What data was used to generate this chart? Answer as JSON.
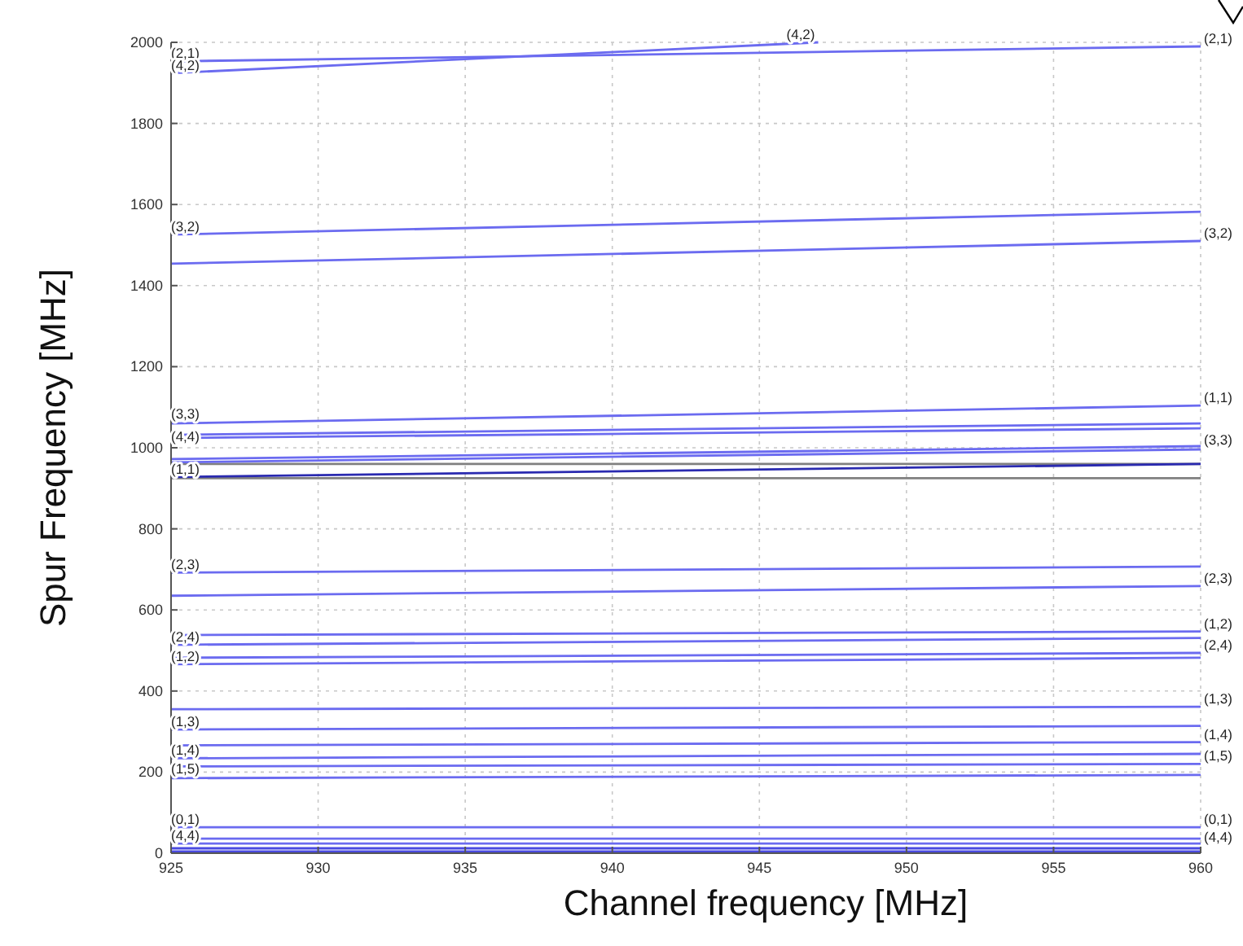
{
  "chart_data": {
    "type": "line",
    "xlabel": "Channel frequency [MHz]",
    "ylabel": "Spur Frequency [MHz]",
    "xlim": [
      925,
      960
    ],
    "ylim": [
      0,
      2000
    ],
    "xticks": [
      925,
      930,
      935,
      940,
      945,
      950,
      955,
      960
    ],
    "yticks": [
      0,
      200,
      400,
      600,
      800,
      1000,
      1200,
      1400,
      1600,
      1800,
      2000
    ],
    "grid": true,
    "marker": "none",
    "line_style": "solid",
    "ref_lines": [
      {
        "axis": "y",
        "value": 925,
        "color": "#808080"
      },
      {
        "axis": "y",
        "value": 960,
        "color": "#808080"
      }
    ],
    "series": [
      {
        "color": "#6b6bf0",
        "x": [
          925,
          960
        ],
        "values": [
          1953,
          1990
        ]
      },
      {
        "color": "#6b6bf0",
        "x": [
          925,
          947
        ],
        "values": [
          1924,
          2000
        ]
      },
      {
        "color": "#6b6bf0",
        "x": [
          925,
          960
        ],
        "values": [
          1526,
          1582
        ]
      },
      {
        "color": "#6b6bf0",
        "x": [
          925,
          960
        ],
        "values": [
          1454,
          1510
        ]
      },
      {
        "color": "#6b6bf0",
        "x": [
          925,
          960
        ],
        "values": [
          1060,
          1104
        ]
      },
      {
        "color": "#6b6bf0",
        "x": [
          925,
          960
        ],
        "values": [
          1032,
          1060
        ]
      },
      {
        "color": "#6b6bf0",
        "x": [
          925,
          960
        ],
        "values": [
          1024,
          1048
        ]
      },
      {
        "color": "#6b6bf0",
        "x": [
          925,
          960
        ],
        "values": [
          972,
          1004
        ]
      },
      {
        "color": "#6b6bf0",
        "x": [
          925,
          960
        ],
        "values": [
          964,
          996
        ]
      },
      {
        "color": "#2a2ab0",
        "x": [
          925,
          960
        ],
        "values": [
          928,
          960
        ]
      },
      {
        "color": "#6b6bf0",
        "x": [
          925,
          960
        ],
        "values": [
          692,
          707
        ]
      },
      {
        "color": "#6b6bf0",
        "x": [
          925,
          960
        ],
        "values": [
          635,
          659
        ]
      },
      {
        "color": "#6b6bf0",
        "x": [
          925,
          960
        ],
        "values": [
          538,
          547
        ]
      },
      {
        "color": "#6b6bf0",
        "x": [
          925,
          960
        ],
        "values": [
          514,
          531
        ]
      },
      {
        "color": "#6b6bf0",
        "x": [
          925,
          960
        ],
        "values": [
          482,
          494
        ]
      },
      {
        "color": "#6b6bf0",
        "x": [
          925,
          960
        ],
        "values": [
          466,
          482
        ]
      },
      {
        "color": "#6b6bf0",
        "x": [
          925,
          960
        ],
        "values": [
          355,
          361
        ]
      },
      {
        "color": "#6b6bf0",
        "x": [
          925,
          960
        ],
        "values": [
          305,
          314
        ]
      },
      {
        "color": "#6b6bf0",
        "x": [
          925,
          960
        ],
        "values": [
          266,
          274
        ]
      },
      {
        "color": "#6b6bf0",
        "x": [
          925,
          960
        ],
        "values": [
          234,
          245
        ]
      },
      {
        "color": "#6b6bf0",
        "x": [
          925,
          960
        ],
        "values": [
          214,
          220
        ]
      },
      {
        "color": "#6b6bf0",
        "x": [
          925,
          960
        ],
        "values": [
          185,
          193
        ]
      },
      {
        "color": "#6b6bf0",
        "x": [
          925,
          960
        ],
        "values": [
          64,
          64
        ]
      },
      {
        "color": "#6b6bf0",
        "x": [
          925,
          960
        ],
        "values": [
          36,
          36
        ]
      },
      {
        "color": "#6b6bf0",
        "x": [
          925,
          960
        ],
        "values": [
          24,
          24
        ]
      },
      {
        "color": "#4a4ae0",
        "x": [
          925,
          960
        ],
        "values": [
          12,
          12
        ]
      },
      {
        "color": "#4a4ae0",
        "x": [
          925,
          960
        ],
        "values": [
          4,
          4
        ]
      }
    ],
    "annotations": [
      {
        "text": "(2,1)",
        "x": 925,
        "y": 1953
      },
      {
        "text": "(4,2)",
        "x": 925,
        "y": 1924
      },
      {
        "text": "(3,2)",
        "x": 925,
        "y": 1526
      },
      {
        "text": "(3,3)",
        "x": 925,
        "y": 1064
      },
      {
        "text": "(4,4)",
        "x": 925,
        "y": 1008
      },
      {
        "text": "(1,1)",
        "x": 925,
        "y": 928
      },
      {
        "text": "(2,3)",
        "x": 925,
        "y": 692
      },
      {
        "text": "(2,4)",
        "x": 925,
        "y": 514
      },
      {
        "text": "(1,2)",
        "x": 925,
        "y": 466
      },
      {
        "text": "(1,3)",
        "x": 925,
        "y": 305
      },
      {
        "text": "(1,4)",
        "x": 925,
        "y": 234
      },
      {
        "text": "(1,5)",
        "x": 925,
        "y": 189
      },
      {
        "text": "(0,1)",
        "x": 925,
        "y": 64
      },
      {
        "text": "(4,4)",
        "x": 925,
        "y": 24
      },
      {
        "text": "(4,2)",
        "x": 947,
        "y": 2000
      },
      {
        "text": "(2,1)",
        "x": 960,
        "y": 1990
      },
      {
        "text": "(3,2)",
        "x": 960,
        "y": 1510
      },
      {
        "text": "(1,1)",
        "x": 960,
        "y": 1104
      },
      {
        "text": "(3,3)",
        "x": 960,
        "y": 1000
      },
      {
        "text": "(2,3)",
        "x": 960,
        "y": 659
      },
      {
        "text": "(1,2)",
        "x": 960,
        "y": 547
      },
      {
        "text": "(2,4)",
        "x": 960,
        "y": 494
      },
      {
        "text": "(1,3)",
        "x": 960,
        "y": 361
      },
      {
        "text": "(1,4)",
        "x": 960,
        "y": 274
      },
      {
        "text": "(1,5)",
        "x": 960,
        "y": 220
      },
      {
        "text": "(0,1)",
        "x": 960,
        "y": 64
      },
      {
        "text": "(4,4)",
        "x": 960,
        "y": 20
      }
    ]
  }
}
